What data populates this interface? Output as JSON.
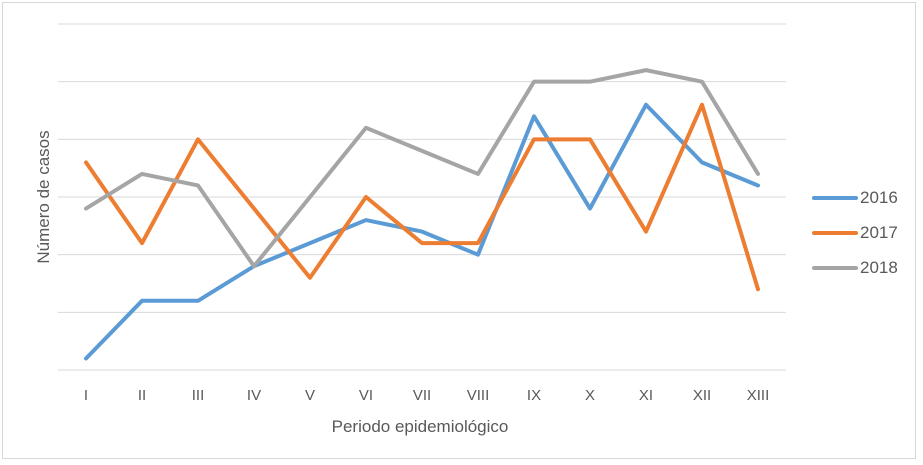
{
  "figure": {
    "background": "#ffffff",
    "border_color": "#d7d7d7"
  },
  "chart_data": {
    "type": "line",
    "title": "",
    "xlabel": "Periodo epidemiológico",
    "ylabel": "Número de casos",
    "categories": [
      "I",
      "II",
      "III",
      "IV",
      "V",
      "VI",
      "VII",
      "VIII",
      "IX",
      "X",
      "XI",
      "XII",
      "XIII"
    ],
    "series": [
      {
        "name": "2016",
        "color": "#5B9BD5",
        "values": [
          1,
          6,
          6,
          9,
          11,
          13,
          12,
          10,
          22,
          14,
          23,
          18,
          16
        ]
      },
      {
        "name": "2017",
        "color": "#ED7D31",
        "values": [
          18,
          11,
          20,
          14,
          8,
          15,
          11,
          11,
          20,
          20,
          12,
          23,
          7
        ]
      },
      {
        "name": "2018",
        "color": "#A5A5A5",
        "values": [
          14,
          17,
          16,
          9,
          15,
          21,
          19,
          17,
          25,
          25,
          26,
          25,
          17
        ]
      }
    ],
    "ylim": [
      0,
      30
    ],
    "y_gridline_step": 5,
    "y_tick_labels_shown": false,
    "grid": "horizontal",
    "gridline_color": "#D9D9D9",
    "axis_line_color": "#D9D9D9",
    "text_color": "#595959",
    "legend_position": "right",
    "line_width": 4
  }
}
